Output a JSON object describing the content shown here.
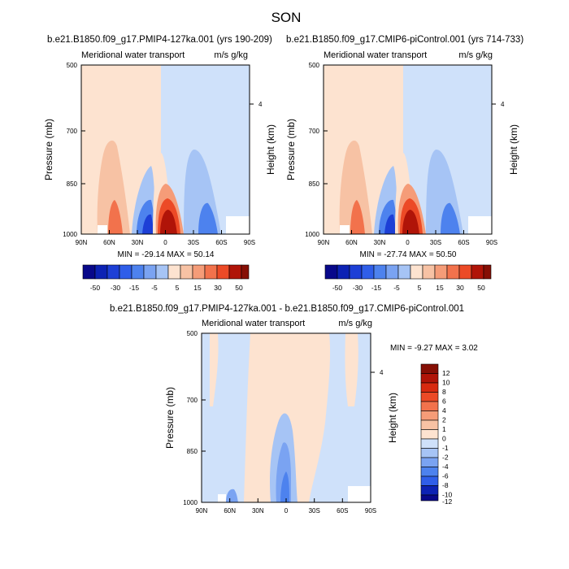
{
  "title": "SON",
  "colors": {
    "blue": [
      "#08088a",
      "#0c22b4",
      "#1d3fd6",
      "#2f5ee9",
      "#4d82ee",
      "#7aa3f2",
      "#a6c4f5",
      "#cfe1fa"
    ],
    "red": [
      "#fde3d0",
      "#f7c2a4",
      "#f59c78",
      "#f2724c",
      "#ec4a26",
      "#d72a10",
      "#b01408",
      "#860f05"
    ],
    "white": "#ffffff"
  },
  "chart_data": [
    {
      "type": "heatmap",
      "title": "b.e21.B1850.f09_g17.PMIP4-127ka.001 (yrs 190-209)",
      "left_label": "Meridional water transport",
      "right_label": "m/s g/kg",
      "xlabel": "",
      "ylabel": "Pressure (mb)",
      "y2label": "Height (km)",
      "x_ticks": [
        "90N",
        "60N",
        "30N",
        "0",
        "30S",
        "60S",
        "90S"
      ],
      "y_ticks": [
        "500",
        "700",
        "850",
        "1000"
      ],
      "y2_ticks": [
        "4"
      ],
      "min_max": "MIN = -29.14   MAX =  50.14",
      "colorbar_labels": [
        "-50",
        "-30",
        "-15",
        "-5",
        "5",
        "15",
        "30",
        "50"
      ]
    },
    {
      "type": "heatmap",
      "title": "b.e21.B1850.f09_g17.CMIP6-piControl.001 (yrs 714-733)",
      "left_label": "Meridional water transport",
      "right_label": "m/s g/kg",
      "xlabel": "",
      "ylabel": "Pressure (mb)",
      "y2label": "Height (km)",
      "x_ticks": [
        "90N",
        "60N",
        "30N",
        "0",
        "30S",
        "60S",
        "90S"
      ],
      "y_ticks": [
        "500",
        "700",
        "850",
        "1000"
      ],
      "y2_ticks": [
        "4"
      ],
      "min_max": "MIN = -27.74   MAX =  50.50",
      "colorbar_labels": [
        "-50",
        "-30",
        "-15",
        "-5",
        "5",
        "15",
        "30",
        "50"
      ]
    },
    {
      "type": "heatmap",
      "title": "b.e21.B1850.f09_g17.PMIP4-127ka.001 - b.e21.B1850.f09_g17.CMIP6-piControl.001",
      "left_label": "Meridional water transport",
      "right_label": "m/s g/kg",
      "xlabel": "",
      "ylabel": "Pressure (mb)",
      "y2label": "Height (km)",
      "x_ticks": [
        "90N",
        "60N",
        "30N",
        "0",
        "30S",
        "60S",
        "90S"
      ],
      "y_ticks": [
        "500",
        "700",
        "850",
        "1000"
      ],
      "y2_ticks": [
        "4"
      ],
      "min_max": "MIN =  -9.27   MAX =   3.02",
      "colorbar_labels": [
        "12",
        "10",
        "8",
        "6",
        "4",
        "2",
        "1",
        "0",
        "-1",
        "-2",
        "-4",
        "-6",
        "-8",
        "-10",
        "-12"
      ]
    }
  ]
}
